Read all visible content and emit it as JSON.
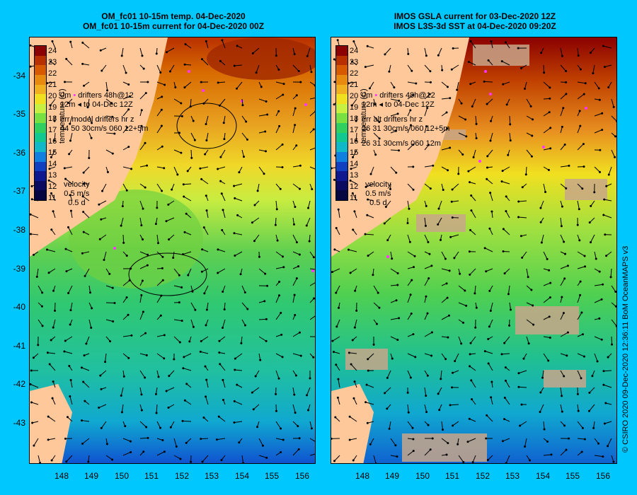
{
  "left_panel": {
    "title_line1": "OM_fc01 10-15m temp. 04-Dec-2020",
    "title_line2": "OM_fc01 10-15m current for 04-Dec-2020 00Z",
    "drifters_line1": "drifters 48h@12",
    "drifters_line2": "to 04-Dec 12Z",
    "drifters_prefix1": "0m",
    "drifters_prefix2": "12m",
    "err_line1": "err model drifters hr z",
    "err_line2": "44 50 30cm/s 060 12+5m",
    "velocity_label": "velocity",
    "velocity_speed": "0.5 m/s",
    "velocity_time": "0.5 d"
  },
  "right_panel": {
    "title_line1": "IMOS GSLA current for 03-Dec-2020 12Z",
    "title_line2": "IMOS L3S-3d SST at 04-Dec-2020 09:20Z",
    "drifters_line1": "drifters 48h@12",
    "drifters_line2": "to 04-Dec 12Z",
    "drifters_prefix1": "0m",
    "drifters_prefix2": "12m",
    "err_line1": "err alt drifters hr z",
    "err_line2": "26 31 30cm/s 060 12+5m",
    "err_line3": "26 31 30cm/s 060 12m",
    "velocity_label": "velocity",
    "velocity_speed": "0.5 m/s",
    "velocity_time": "0.5 d"
  },
  "colorbar": {
    "ticks": [
      "24",
      "23",
      "22",
      "21",
      "20",
      "19",
      "18",
      "17",
      "16",
      "15",
      "14",
      "13",
      "12",
      "11"
    ],
    "units": "temperature (C)",
    "colors": [
      "#8b0000",
      "#b83000",
      "#d85a00",
      "#e88a10",
      "#f0b020",
      "#f0e020",
      "#c8f040",
      "#78e040",
      "#30d060",
      "#10c890",
      "#10b8c8",
      "#1080e0",
      "#1040c0",
      "#101890"
    ]
  },
  "latitude_labels": [
    "-34",
    "-35",
    "-36",
    "-37",
    "-38",
    "-39",
    "-40",
    "-41",
    "-42",
    "-43"
  ],
  "longitude_labels": [
    "148",
    "149",
    "150",
    "151",
    "152",
    "153",
    "154",
    "155",
    "156"
  ],
  "credit": "© CSIRO 2020   09-Dec-2020 12:36:11 BoM OceanMAPS v3",
  "colors": {
    "background": "#00c8ff",
    "land": "#ffc89a",
    "cloud": "#c8a68a",
    "drifter": "#ff33ff",
    "arrow": "#000000"
  }
}
